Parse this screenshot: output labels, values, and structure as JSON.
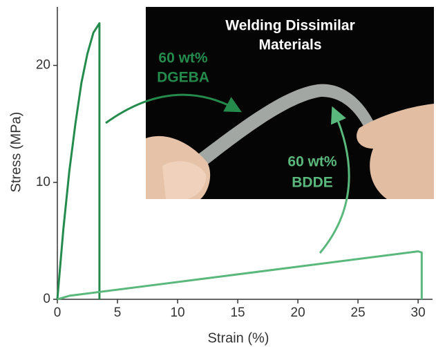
{
  "chart_data": {
    "type": "line",
    "x_label": "Strain (%)",
    "y_label": "Stress (MPa)",
    "xlim": [
      0,
      31.2
    ],
    "ylim": [
      0,
      25
    ],
    "xticks": [
      0,
      5,
      10,
      15,
      20,
      25,
      30
    ],
    "yticks": [
      0,
      10,
      20
    ],
    "series": [
      {
        "color": "#248b4c",
        "x": [
          0,
          0.5,
          1,
          1.5,
          2,
          2.5,
          3,
          3.5,
          3.5
        ],
        "y": [
          0,
          6,
          11,
          15,
          18.5,
          21,
          22.8,
          23.6,
          0
        ]
      },
      {
        "color": "#5bb87c",
        "x": [
          0,
          1,
          30,
          30.3,
          30.3
        ],
        "y": [
          0,
          0.3,
          4.1,
          4.0,
          0
        ]
      }
    ],
    "inset_title": [
      "Welding Dissimilar",
      "Materials"
    ],
    "annotations": [
      {
        "lines": [
          "60 wt%",
          "DGEBA"
        ],
        "color": "#248b4c"
      },
      {
        "lines": [
          "60 wt%",
          "BDDE"
        ],
        "color": "#5bb87c"
      }
    ]
  }
}
